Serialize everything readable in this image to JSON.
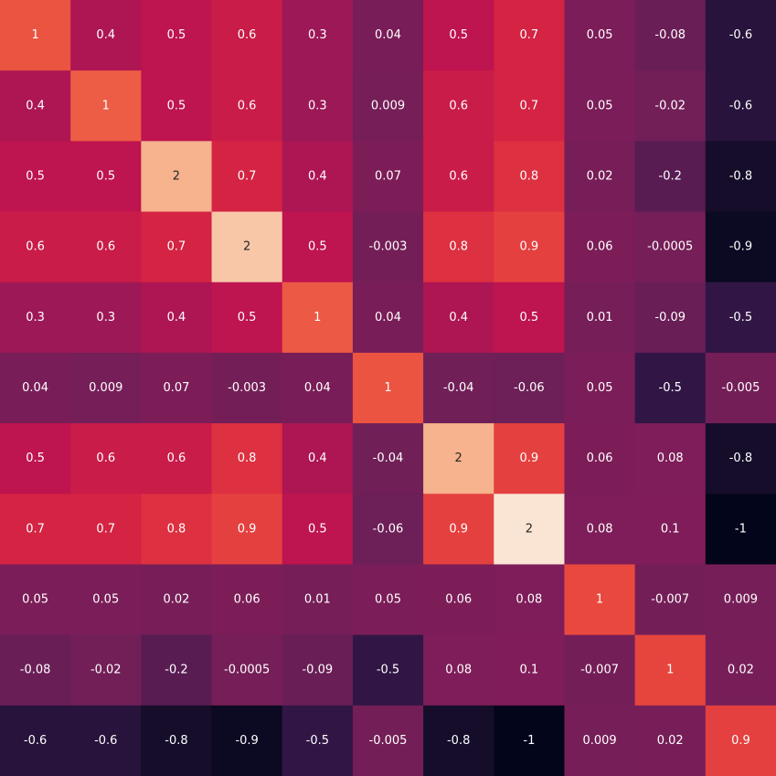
{
  "chart_data": {
    "type": "heatmap",
    "title": "",
    "xlabel": "",
    "ylabel": "",
    "color_range": [
      -1,
      2
    ],
    "colormap": "rocket",
    "rows": [
      {
        "values": [
          1.02,
          0.4,
          0.5,
          0.6,
          0.3,
          0.04,
          0.5,
          0.7,
          0.05,
          -0.08,
          -0.6
        ],
        "labels": [
          "1",
          "0.4",
          "0.5",
          "0.6",
          "0.3",
          "0.04",
          "0.5",
          "0.7",
          "0.05",
          "-0.08",
          "-0.6"
        ]
      },
      {
        "values": [
          0.4,
          1.07,
          0.5,
          0.6,
          0.3,
          0.009,
          0.6,
          0.7,
          0.05,
          -0.02,
          -0.6
        ],
        "labels": [
          "0.4",
          "1",
          "0.5",
          "0.6",
          "0.3",
          "0.009",
          "0.6",
          "0.7",
          "0.05",
          "-0.02",
          "-0.6"
        ]
      },
      {
        "values": [
          0.5,
          0.5,
          1.55,
          0.7,
          0.4,
          0.07,
          0.6,
          0.8,
          0.02,
          -0.2,
          -0.8
        ],
        "labels": [
          "0.5",
          "0.5",
          "2",
          "0.7",
          "0.4",
          "0.07",
          "0.6",
          "0.8",
          "0.02",
          "-0.2",
          "-0.8"
        ]
      },
      {
        "values": [
          0.6,
          0.6,
          0.7,
          1.7,
          0.5,
          -0.003,
          0.8,
          0.9,
          0.06,
          -0.0005,
          -0.9
        ],
        "labels": [
          "0.6",
          "0.6",
          "0.7",
          "2",
          "0.5",
          "-0.003",
          "0.8",
          "0.9",
          "0.06",
          "-0.0005",
          "-0.9"
        ]
      },
      {
        "values": [
          0.3,
          0.3,
          0.4,
          0.5,
          1.05,
          0.04,
          0.4,
          0.5,
          0.01,
          -0.09,
          -0.5
        ],
        "labels": [
          "0.3",
          "0.3",
          "0.4",
          "0.5",
          "1",
          "0.04",
          "0.4",
          "0.5",
          "0.01",
          "-0.09",
          "-0.5"
        ]
      },
      {
        "values": [
          0.04,
          0.009,
          0.07,
          -0.003,
          0.04,
          1.02,
          -0.04,
          -0.06,
          0.05,
          -0.5,
          -0.005
        ],
        "labels": [
          "0.04",
          "0.009",
          "0.07",
          "-0.003",
          "0.04",
          "1",
          "-0.04",
          "-0.06",
          "0.05",
          "-0.5",
          "-0.005"
        ]
      },
      {
        "values": [
          0.5,
          0.6,
          0.6,
          0.8,
          0.4,
          -0.04,
          1.55,
          0.9,
          0.06,
          0.08,
          -0.8
        ],
        "labels": [
          "0.5",
          "0.6",
          "0.6",
          "0.8",
          "0.4",
          "-0.04",
          "2",
          "0.9",
          "0.06",
          "0.08",
          "-0.8"
        ]
      },
      {
        "values": [
          0.7,
          0.7,
          0.8,
          0.9,
          0.5,
          -0.06,
          0.9,
          1.95,
          0.08,
          0.1,
          -1
        ],
        "labels": [
          "0.7",
          "0.7",
          "0.8",
          "0.9",
          "0.5",
          "-0.06",
          "0.9",
          "2",
          "0.08",
          "0.1",
          "-1"
        ]
      },
      {
        "values": [
          0.05,
          0.05,
          0.02,
          0.06,
          0.01,
          0.05,
          0.06,
          0.08,
          0.95,
          -0.007,
          0.009
        ],
        "labels": [
          "0.05",
          "0.05",
          "0.02",
          "0.06",
          "0.01",
          "0.05",
          "0.06",
          "0.08",
          "1",
          "-0.007",
          "0.009"
        ]
      },
      {
        "values": [
          -0.08,
          -0.02,
          -0.2,
          -0.0005,
          -0.09,
          -0.5,
          0.08,
          0.1,
          -0.007,
          0.93,
          0.02
        ],
        "labels": [
          "-0.08",
          "-0.02",
          "-0.2",
          "-0.0005",
          "-0.09",
          "-0.5",
          "0.08",
          "0.1",
          "-0.007",
          "1",
          "0.02"
        ]
      },
      {
        "values": [
          -0.6,
          -0.6,
          -0.8,
          -0.9,
          -0.5,
          -0.005,
          -0.8,
          -1,
          0.009,
          0.02,
          0.9
        ],
        "labels": [
          "-0.6",
          "-0.6",
          "-0.8",
          "-0.9",
          "-0.5",
          "-0.005",
          "-0.8",
          "-1",
          "0.009",
          "0.02",
          "0.9"
        ]
      }
    ]
  }
}
